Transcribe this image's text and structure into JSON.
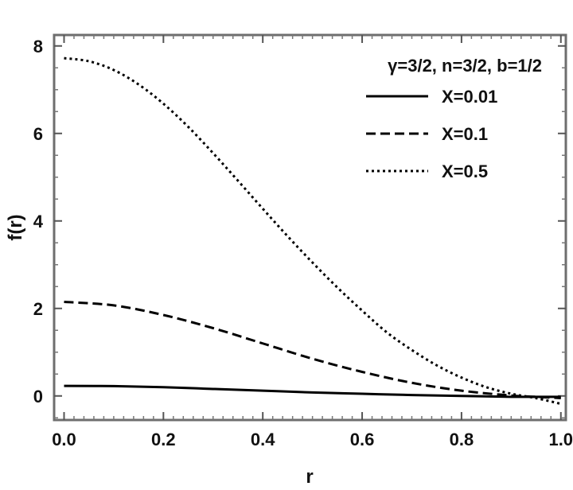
{
  "chart_data": {
    "type": "line",
    "title": "",
    "xlabel": "r",
    "ylabel": "f(r)",
    "xlim": [
      -0.02,
      1.01
    ],
    "ylim": [
      -0.55,
      8.25
    ],
    "x_ticks": [
      "0.0",
      "0.2",
      "0.4",
      "0.6",
      "0.8",
      "1.0"
    ],
    "x_tick_values": [
      0.0,
      0.2,
      0.4,
      0.6,
      0.8,
      1.0
    ],
    "y_ticks": [
      "0",
      "2",
      "4",
      "6",
      "8"
    ],
    "y_tick_values": [
      0,
      2,
      4,
      6,
      8
    ],
    "grid": false,
    "legend_title": "γ=3/2, n=3/2, b=1/2",
    "legend_position": "top-right",
    "series": [
      {
        "name": "X=0.01",
        "style": "solid",
        "x": [
          0.0,
          0.1,
          0.2,
          0.3,
          0.4,
          0.5,
          0.6,
          0.7,
          0.8,
          0.9,
          0.95,
          1.0
        ],
        "y": [
          0.23,
          0.225,
          0.2,
          0.16,
          0.12,
          0.08,
          0.05,
          0.02,
          0.0,
          -0.02,
          -0.02,
          -0.02
        ]
      },
      {
        "name": "X=0.1",
        "style": "dashed",
        "x": [
          0.0,
          0.1,
          0.2,
          0.3,
          0.4,
          0.5,
          0.6,
          0.7,
          0.8,
          0.9,
          0.95,
          1.0
        ],
        "y": [
          2.15,
          2.07,
          1.85,
          1.55,
          1.2,
          0.85,
          0.55,
          0.3,
          0.12,
          0.01,
          -0.02,
          -0.05
        ]
      },
      {
        "name": "X=0.5",
        "style": "dotted",
        "x": [
          0.0,
          0.05,
          0.1,
          0.15,
          0.2,
          0.25,
          0.3,
          0.35,
          0.4,
          0.45,
          0.5,
          0.55,
          0.6,
          0.65,
          0.7,
          0.75,
          0.8,
          0.85,
          0.9,
          0.95,
          1.0
        ],
        "y": [
          7.72,
          7.65,
          7.45,
          7.12,
          6.68,
          6.15,
          5.55,
          4.92,
          4.28,
          3.65,
          3.05,
          2.48,
          1.95,
          1.45,
          1.05,
          0.7,
          0.42,
          0.2,
          0.05,
          -0.05,
          -0.18
        ]
      }
    ]
  }
}
